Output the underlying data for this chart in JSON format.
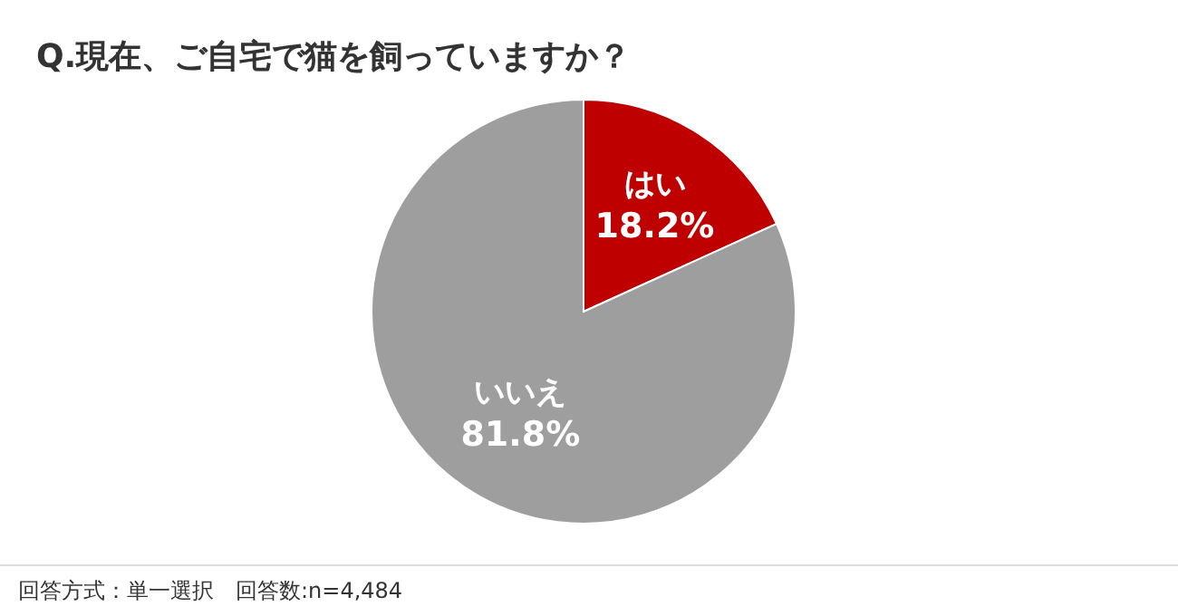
{
  "chart_data": {
    "type": "pie",
    "title": "Q.現在、ご自宅で猫を飼っていますか？",
    "categories": [
      "はい",
      "いいえ"
    ],
    "values": [
      18.2,
      81.8
    ],
    "colors": [
      "#bf0000",
      "#9e9e9e"
    ],
    "value_labels": [
      "18.2%",
      "81.8%"
    ],
    "annotations": [
      "回答方式：単一選択　回答数:n=4,484"
    ]
  }
}
